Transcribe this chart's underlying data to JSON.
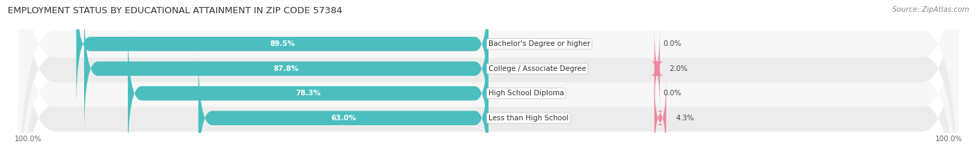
{
  "title": "EMPLOYMENT STATUS BY EDUCATIONAL ATTAINMENT IN ZIP CODE 57384",
  "source": "Source: ZipAtlas.com",
  "categories": [
    "Less than High School",
    "High School Diploma",
    "College / Associate Degree",
    "Bachelor's Degree or higher"
  ],
  "labor_force": [
    63.0,
    78.3,
    87.8,
    89.5
  ],
  "unemployed": [
    4.3,
    0.0,
    2.0,
    0.0
  ],
  "labor_force_color": "#4bbfbf",
  "unemployed_color": "#f087a0",
  "row_colors": [
    "#ececec",
    "#f7f7f7",
    "#ececec",
    "#f7f7f7"
  ],
  "title_fontsize": 9.5,
  "source_fontsize": 7.5,
  "label_fontsize": 7.5,
  "value_fontsize": 7.5,
  "tick_fontsize": 7.5,
  "bar_height": 0.58,
  "xlim": 100
}
